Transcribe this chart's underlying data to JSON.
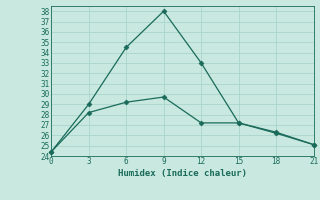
{
  "xlabel": "Humidex (Indice chaleur)",
  "line1_x": [
    0,
    3,
    6,
    9,
    12,
    15,
    18,
    21
  ],
  "line1_y": [
    24.4,
    29,
    34.5,
    38,
    33,
    27.2,
    26.2,
    25.1
  ],
  "line2_x": [
    0,
    3,
    6,
    9,
    12,
    15,
    18,
    21
  ],
  "line2_y": [
    24.4,
    28.2,
    29.2,
    29.7,
    27.2,
    27.2,
    26.3,
    25.1
  ],
  "line_color": "#1a6b5a",
  "bg_color": "#c8e8e0",
  "grid_color": "#aad4cc",
  "xlim": [
    0,
    21
  ],
  "ylim": [
    24,
    38.5
  ],
  "xticks": [
    0,
    3,
    6,
    9,
    12,
    15,
    18,
    21
  ],
  "yticks": [
    24,
    25,
    26,
    27,
    28,
    29,
    30,
    31,
    32,
    33,
    34,
    35,
    36,
    37,
    38
  ],
  "marker": "D",
  "markersize": 2.5,
  "linewidth": 0.9
}
